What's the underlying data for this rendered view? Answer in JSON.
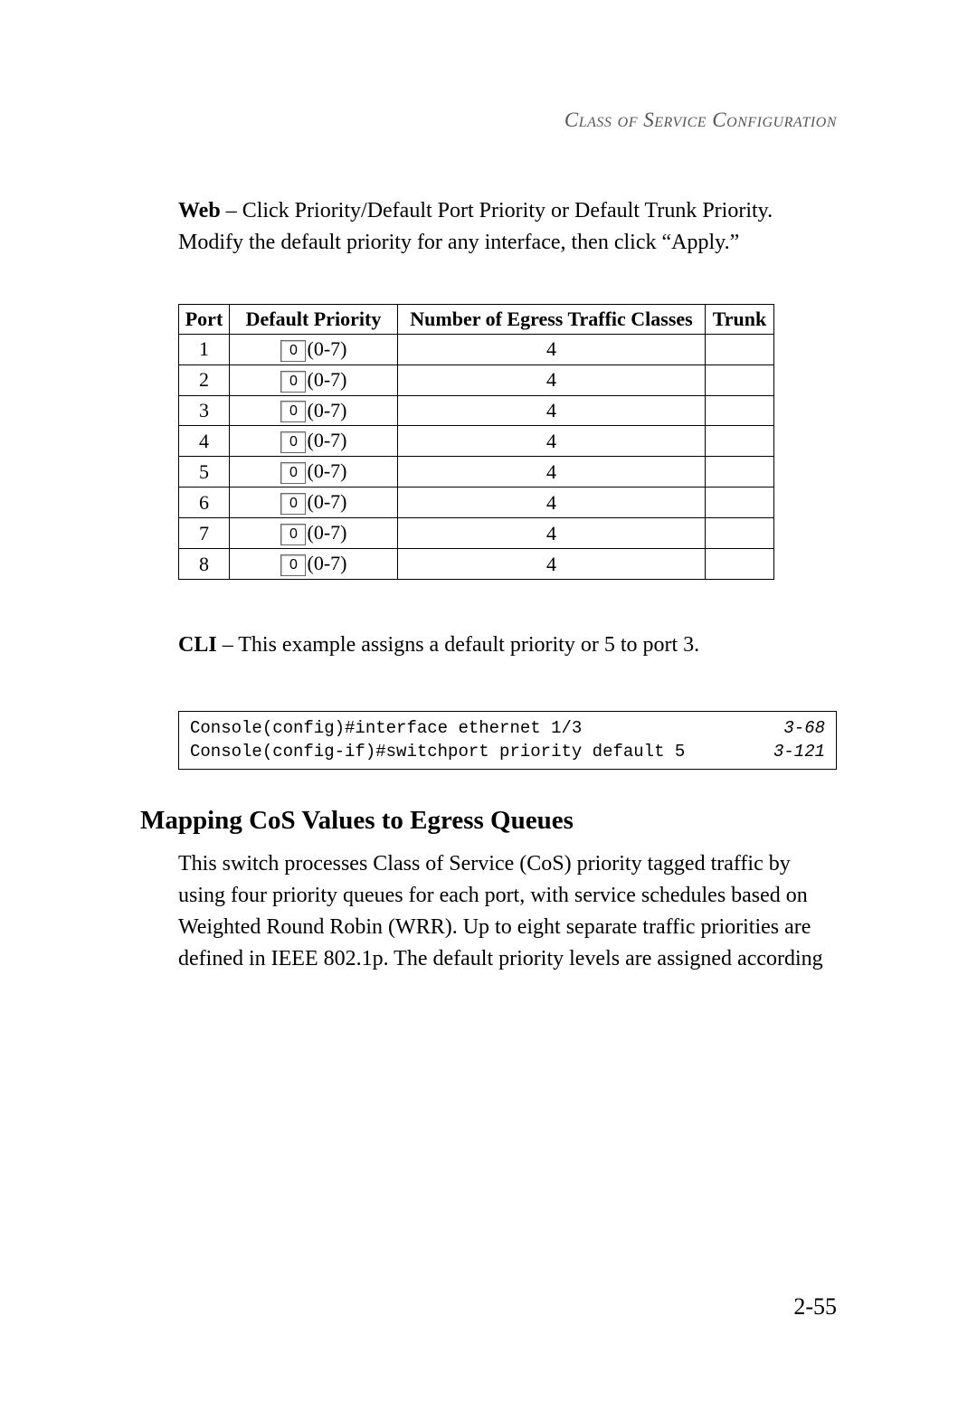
{
  "header": "Class of Service Configuration",
  "web_label": "Web",
  "web_text": " – Click Priority/Default Port Priority or Default Trunk Priority. Modify the default priority for any interface, then click “Apply.”",
  "table": {
    "headers": {
      "port": "Port",
      "prio": "Default Priority",
      "egress": "Number of Egress Traffic Classes",
      "trunk": "Trunk"
    },
    "range_hint": "(0-7)",
    "rows": [
      {
        "port": "1",
        "value": "0",
        "egress": "4",
        "trunk": ""
      },
      {
        "port": "2",
        "value": "0",
        "egress": "4",
        "trunk": ""
      },
      {
        "port": "3",
        "value": "0",
        "egress": "4",
        "trunk": ""
      },
      {
        "port": "4",
        "value": "0",
        "egress": "4",
        "trunk": ""
      },
      {
        "port": "5",
        "value": "0",
        "egress": "4",
        "trunk": ""
      },
      {
        "port": "6",
        "value": "0",
        "egress": "4",
        "trunk": ""
      },
      {
        "port": "7",
        "value": "0",
        "egress": "4",
        "trunk": ""
      },
      {
        "port": "8",
        "value": "0",
        "egress": "4",
        "trunk": ""
      }
    ]
  },
  "cli_label": "CLI",
  "cli_text": " – This example assigns a default priority or 5 to port 3.",
  "cli_box": [
    {
      "cmd": "Console(config)#interface ethernet 1/3",
      "ref": "3-68"
    },
    {
      "cmd": "Console(config-if)#switchport priority default 5",
      "ref": "3-121"
    }
  ],
  "section_title": "Mapping CoS Values to Egress Queues",
  "section_body": "This switch processes Class of Service (CoS) priority tagged traffic by using four priority queues for each port, with service schedules based on Weighted Round Robin (WRR). Up to eight separate traffic priorities are defined in IEEE 802.1p. The default priority levels are assigned according",
  "page_number": "2-55"
}
